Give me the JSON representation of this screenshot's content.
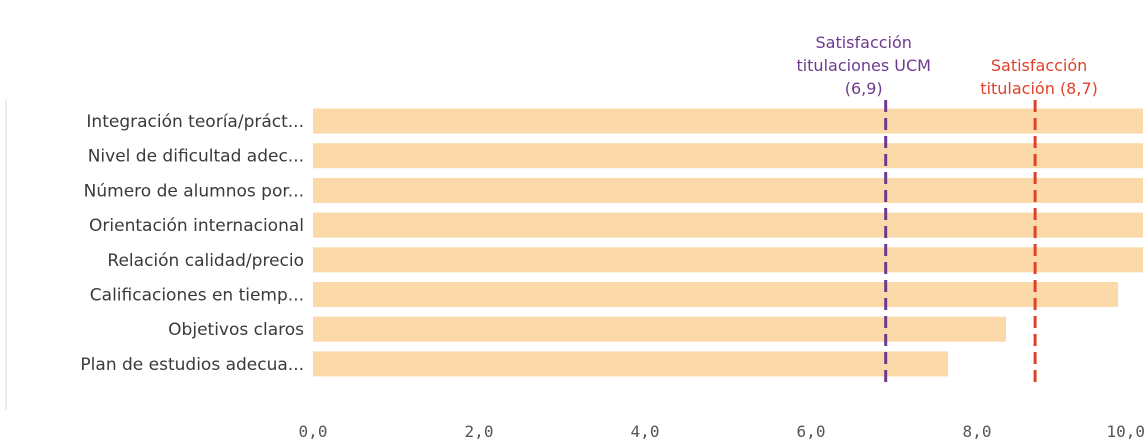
{
  "chart_data": {
    "type": "bar",
    "orientation": "horizontal",
    "categories": [
      "Integración teoría/práct...",
      "Nivel de dificultad adec...",
      "Número de alumnos por...",
      "Orientación internacional",
      "Relación calidad/precio",
      "Calificaciones en tiemp...",
      "Objetivos claros",
      "Plan de estudios adecua..."
    ],
    "values": [
      10.0,
      10.0,
      10.0,
      10.0,
      10.0,
      9.7,
      8.35,
      7.65
    ],
    "xlim": [
      0,
      10
    ],
    "xticks": [
      "0,0",
      "2,0",
      "4,0",
      "6,0",
      "8,0",
      "10,0"
    ],
    "xtick_values": [
      0,
      2,
      4,
      6,
      8,
      10
    ],
    "grid": false,
    "bar_color": "#fbd9a8",
    "reference_lines": [
      {
        "value": 6.9,
        "color": "#6e3a8e",
        "label_lines": [
          "Satisfacción",
          "titulaciones UCM",
          "(6,9)"
        ]
      },
      {
        "value": 8.7,
        "color": "#e0412a",
        "label_lines": [
          "Satisfacción",
          "titulación (8,7)"
        ]
      }
    ]
  }
}
